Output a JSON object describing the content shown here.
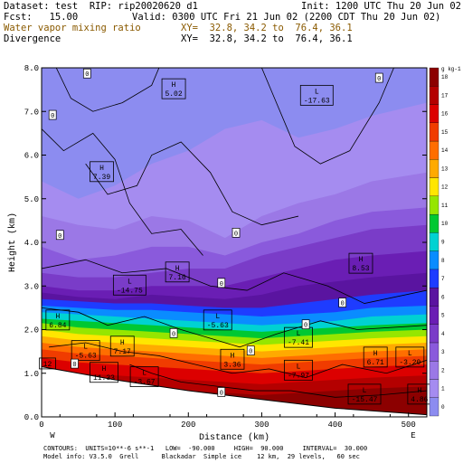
{
  "header": {
    "dataset": "Dataset: test  RIP: rip20020620 d1",
    "init": "Init: 1200 UTC Thu 20 Jun 02",
    "fcst": "Fcst:   15.00",
    "valid": "Valid: 0300 UTC Fri 21 Jun 02 (2200 CDT Thu 20 Jun 02)",
    "field_fill": "Water vapor mixing ratio",
    "xy_fill": "XY=  32.8, 34.2 to  76.4, 36.1",
    "field_contour": "Divergence",
    "xy_contour": "XY=  32.8, 34.2 to  76.4, 36.1"
  },
  "footer": {
    "line1": "CONTOURS:  UNITS=10**-6 s**-1   LOW=  -90.000     HIGH=  90.000     INTERVAL=  30.000",
    "line2": "Model info: V3.5.0  Grell      Blackadar  Simple ice    12 km,  29 levels,   60 sec"
  },
  "colors": {
    "fill_bands": [
      "#8c8cf0",
      "#a58cf0",
      "#9b78e6",
      "#8a5adc",
      "#7a3cc8",
      "#6a1eb4",
      "#5a14a0",
      "#1e3cff",
      "#0a8cff",
      "#00d2d2",
      "#00c832",
      "#96e600",
      "#ffe600",
      "#ffaa00",
      "#ff6e00",
      "#f03c00",
      "#dc0000",
      "#b40000",
      "#8c0000"
    ],
    "ground": "#ffffff",
    "contour": "#000000"
  },
  "chart_data": {
    "type": "heatmap",
    "title": "Water vapor mixing ratio",
    "xlabel": "Distance (km)",
    "ylabel": "Height (km)",
    "xlim": [
      0,
      525
    ],
    "ylim": [
      0,
      8.0
    ],
    "x_ticks": [
      "0",
      "100",
      "200",
      "300",
      "400",
      "500"
    ],
    "y_ticks": [
      "0.0",
      "1.0",
      "2.0",
      "3.0",
      "4.0",
      "5.0",
      "6.0",
      "7.0",
      "8.0"
    ],
    "x_end_labels": {
      "left": "W",
      "right": "E"
    },
    "colorbar": {
      "unit": "g kg-1",
      "labels": [
        "0",
        "1",
        "2",
        "3",
        "4",
        "5",
        "6",
        "7",
        "8",
        "9",
        "10",
        "11",
        "12",
        "13",
        "14",
        "15",
        "16",
        "17",
        "18"
      ]
    },
    "extremes": [
      {
        "type": "H",
        "value": "5.02",
        "x": 180,
        "y": 7.5
      },
      {
        "type": "L",
        "value": "-17.63",
        "x": 375,
        "y": 7.35
      },
      {
        "type": "H",
        "value": "7.39",
        "x": 82,
        "y": 5.6
      },
      {
        "type": "H",
        "value": "7.16",
        "x": 185,
        "y": 3.3
      },
      {
        "type": "H",
        "value": "8.53",
        "x": 435,
        "y": 3.5
      },
      {
        "type": "L",
        "value": "-14.75",
        "x": 120,
        "y": 3.0
      },
      {
        "type": "H",
        "value": "6.84",
        "x": 22,
        "y": 2.2
      },
      {
        "type": "L",
        "value": "-5.63",
        "x": 240,
        "y": 2.2
      },
      {
        "type": "L",
        "value": "-7.41",
        "x": 350,
        "y": 1.8
      },
      {
        "type": "L",
        "value": "-5.63",
        "x": 60,
        "y": 1.5
      },
      {
        "type": "H",
        "value": "7.17",
        "x": 110,
        "y": 1.6
      },
      {
        "type": "H",
        "value": "3.36",
        "x": 260,
        "y": 1.3
      },
      {
        "type": "L",
        "value": "-7.97",
        "x": 350,
        "y": 1.05
      },
      {
        "type": "H",
        "value": "6.71",
        "x": 455,
        "y": 1.35
      },
      {
        "type": "L",
        "value": "-3.20",
        "x": 502,
        "y": 1.35
      },
      {
        "type": "H",
        "value": "11.33",
        "x": 85,
        "y": 1.0
      },
      {
        "type": "L",
        "value": "-3.67",
        "x": 140,
        "y": 0.9
      },
      {
        "type": "L",
        "value": "-15.47",
        "x": 440,
        "y": 0.5
      },
      {
        "type": "H",
        "value": "4.86",
        "x": 515,
        "y": 0.5
      },
      {
        "type": "",
        "value": "12",
        "x": 8,
        "y": 1.1
      }
    ],
    "zero_labels": [
      {
        "value": "0",
        "x": 62,
        "y": 7.85
      },
      {
        "value": "0",
        "x": 460,
        "y": 7.75
      },
      {
        "value": "0",
        "x": 15,
        "y": 6.9
      },
      {
        "value": "0",
        "x": 25,
        "y": 4.15
      },
      {
        "value": "0",
        "x": 265,
        "y": 4.2
      },
      {
        "value": "0",
        "x": 245,
        "y": 3.05
      },
      {
        "value": "0",
        "x": 410,
        "y": 2.6
      },
      {
        "value": "0",
        "x": 360,
        "y": 2.1
      },
      {
        "value": "0",
        "x": 180,
        "y": 1.9
      },
      {
        "value": "0",
        "x": 285,
        "y": 1.5
      },
      {
        "value": "0",
        "x": 45,
        "y": 1.2
      },
      {
        "value": "0",
        "x": 245,
        "y": 0.55
      }
    ]
  }
}
